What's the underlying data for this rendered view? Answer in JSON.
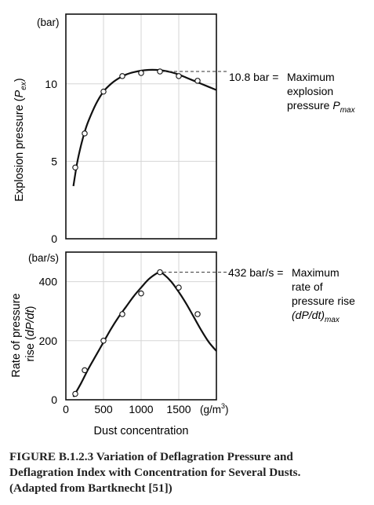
{
  "chart_data": [
    {
      "type": "line",
      "title": "",
      "xlabel": "",
      "ylabel": "Explosion pressure (P_ex)",
      "ylabel_parts": [
        "Explosion pressure (",
        "P",
        "ex",
        ")"
      ],
      "y_unit": "(bar)",
      "xlim": [
        0,
        2000
      ],
      "ylim": [
        0,
        14.5
      ],
      "yticks": [
        0,
        5,
        10
      ],
      "xgrid": [
        500,
        1000,
        1500
      ],
      "grid": true,
      "series": [
        {
          "x": [
            125,
            250,
            500,
            750,
            1000,
            1250,
            1500,
            1750
          ],
          "y": [
            4.6,
            6.8,
            9.5,
            10.5,
            10.7,
            10.8,
            10.5,
            10.2
          ]
        }
      ],
      "fit_curve": {
        "x": [
          100,
          150,
          200,
          250,
          300,
          400,
          500,
          600,
          700,
          800,
          900,
          1000,
          1100,
          1200,
          1300,
          1400,
          1500,
          1600,
          1700,
          1800,
          1900,
          2000
        ],
        "y": [
          3.4,
          4.9,
          6.0,
          6.9,
          7.6,
          8.7,
          9.5,
          10.0,
          10.35,
          10.6,
          10.75,
          10.85,
          10.9,
          10.9,
          10.85,
          10.75,
          10.6,
          10.4,
          10.2,
          10.0,
          9.8,
          9.6
        ]
      },
      "annotation": {
        "x": 1250,
        "y": 10.8,
        "lines": [
          "10.8 bar = Maximum",
          "explosion",
          "pressure P_max"
        ],
        "parts": {
          "value": "10.8 bar =",
          "line1": "Maximum",
          "line2": "explosion",
          "line3": "pressure ",
          "sym": "P",
          "sub": "max"
        }
      }
    },
    {
      "type": "line",
      "title": "",
      "xlabel": "Dust concentration",
      "x_unit": "(g/m³)",
      "x_unit_parts": [
        "(g/m",
        "3",
        ")"
      ],
      "ylabel": "Rate of pressure rise (dP/dt)",
      "ylabel_line1": "Rate of pressure",
      "ylabel_line2_parts": [
        "rise (",
        "dP/dt",
        ")"
      ],
      "y_unit": "(bar/s)",
      "xlim": [
        0,
        2000
      ],
      "ylim": [
        0,
        500
      ],
      "xticks": [
        0,
        500,
        1000,
        1500
      ],
      "yticks": [
        0,
        200,
        400
      ],
      "grid": true,
      "series": [
        {
          "x": [
            125,
            250,
            500,
            750,
            1000,
            1250,
            1500,
            1750
          ],
          "y": [
            20,
            100,
            200,
            290,
            360,
            432,
            380,
            290
          ]
        }
      ],
      "fit_curve": {
        "x": [
          100,
          200,
          300,
          400,
          500,
          600,
          700,
          800,
          900,
          1000,
          1100,
          1200,
          1250,
          1300,
          1400,
          1500,
          1600,
          1700,
          1800,
          1900,
          2000
        ],
        "y": [
          10,
          55,
          105,
          150,
          195,
          240,
          280,
          315,
          350,
          380,
          408,
          427,
          432,
          425,
          400,
          365,
          325,
          280,
          235,
          195,
          165
        ]
      },
      "annotation": {
        "x": 1250,
        "y": 432,
        "lines": [
          "432 bar/s = Maximum",
          "rate of",
          "pressure rise",
          "(dP/dt)max"
        ],
        "parts": {
          "value": "432 bar/s =",
          "line1": "Maximum",
          "line2": "rate of",
          "line3": "pressure rise",
          "sym": "(dP/dt)",
          "sub": "max"
        }
      }
    }
  ],
  "caption": {
    "line1": "FIGURE B.1.2.3    Variation of Deflagration Pressure and",
    "line2": "Deflagration Index with Concentration for Several Dusts.",
    "line3": "(Adapted from Bartknecht [51])"
  }
}
